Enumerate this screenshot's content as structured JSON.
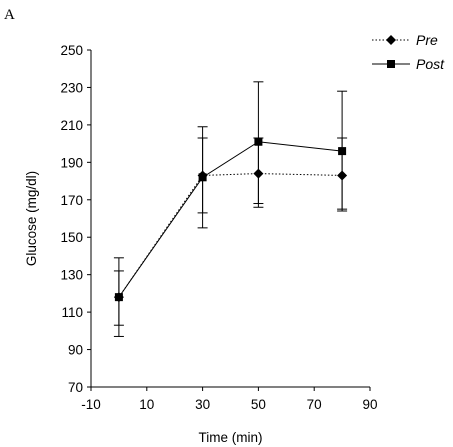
{
  "panel_label": "A",
  "chart_data": {
    "type": "line",
    "title": "",
    "xlabel": "Time (min)",
    "ylabel": "Glucose (mg/dl)",
    "xlim": [
      -10,
      90
    ],
    "ylim": [
      70,
      250
    ],
    "xticks": [
      -10,
      10,
      30,
      50,
      70,
      90
    ],
    "yticks": [
      70,
      90,
      110,
      130,
      150,
      170,
      190,
      210,
      230,
      250
    ],
    "grid": false,
    "legend_position": "top-right",
    "series": [
      {
        "name": "Pre",
        "marker": "diamond",
        "line": "dotted",
        "x": [
          0,
          30,
          50,
          80
        ],
        "y": [
          118,
          183,
          184,
          183
        ],
        "err_low": [
          97,
          155,
          166,
          164
        ],
        "err_high": [
          132,
          203,
          203,
          203
        ]
      },
      {
        "name": "Post",
        "marker": "square",
        "line": "solid",
        "x": [
          0,
          30,
          50,
          80
        ],
        "y": [
          118,
          182,
          201,
          196
        ],
        "err_low": [
          103,
          163,
          168,
          165
        ],
        "err_high": [
          139,
          209,
          233,
          228
        ]
      }
    ]
  }
}
